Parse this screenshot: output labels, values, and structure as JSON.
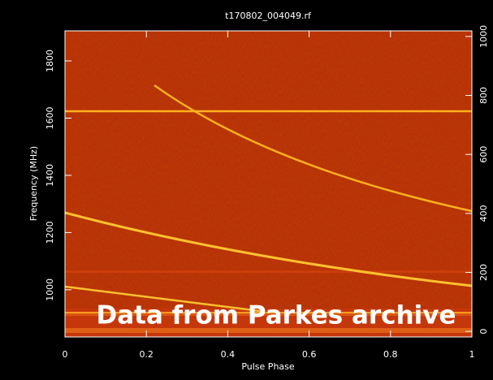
{
  "chart_data": {
    "type": "spectrogram",
    "title": "t170802_004049.rf",
    "x_label": "Pulse Phase",
    "y_label": "Frequency (MHz)",
    "xlim": [
      0,
      1
    ],
    "xticks": [
      0,
      {
        "value": 0.2,
        "label": "0.2"
      },
      {
        "value": 0.4,
        "label": "0.4"
      },
      {
        "value": 0.6,
        "label": "0.6"
      },
      {
        "value": 0.8,
        "label": "0.8"
      },
      1
    ],
    "ylim": [
      835,
      1905
    ],
    "yticks": [
      1000,
      1200,
      1400,
      1600,
      1800
    ],
    "y2lim": [
      -19,
      1019
    ],
    "y2ticks": [
      0,
      200,
      400,
      600,
      800,
      1000
    ],
    "annotation": "Data from Parkes archive"
  }
}
